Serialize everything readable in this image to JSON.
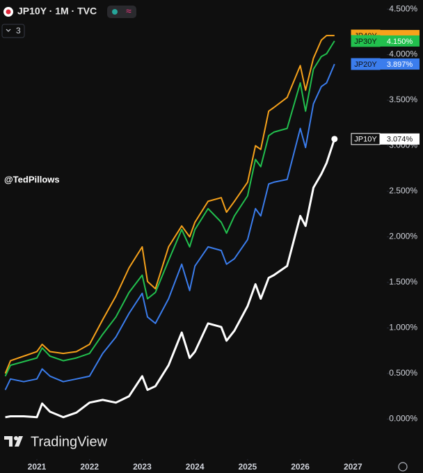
{
  "header": {
    "symbol": "JP10Y · 1M · TVC",
    "indicators": "3"
  },
  "watermark": "@TedPillows",
  "logo": "TradingView",
  "chart_data": {
    "type": "line",
    "x": [
      2020.4,
      2020.5,
      2020.75,
      2021.0,
      2021.1,
      2021.25,
      2021.5,
      2021.75,
      2022.0,
      2022.25,
      2022.5,
      2022.75,
      2023.0,
      2023.1,
      2023.25,
      2023.5,
      2023.75,
      2023.9,
      2024.0,
      2024.25,
      2024.5,
      2024.6,
      2024.75,
      2025.0,
      2025.15,
      2025.25,
      2025.4,
      2025.5,
      2025.75,
      2026.0,
      2026.1,
      2026.25,
      2026.4,
      2026.5,
      2026.65
    ],
    "series": [
      {
        "name": "JP40Y",
        "color": "#f7a21b",
        "values": [
          0.5,
          0.64,
          0.69,
          0.74,
          0.82,
          0.74,
          0.72,
          0.74,
          0.82,
          1.09,
          1.35,
          1.66,
          1.89,
          1.51,
          1.43,
          1.89,
          2.12,
          2.0,
          2.16,
          2.39,
          2.43,
          2.27,
          2.39,
          2.6,
          3.0,
          2.96,
          3.38,
          3.42,
          3.53,
          3.88,
          3.61,
          3.96,
          4.16,
          4.21,
          4.21
        ]
      },
      {
        "name": "JP30Y",
        "color": "#22c04e",
        "values": [
          0.47,
          0.59,
          0.63,
          0.67,
          0.78,
          0.69,
          0.64,
          0.67,
          0.72,
          0.93,
          1.12,
          1.39,
          1.58,
          1.32,
          1.39,
          1.74,
          2.08,
          1.89,
          2.08,
          2.31,
          2.16,
          2.04,
          2.23,
          2.45,
          2.85,
          2.77,
          3.11,
          3.15,
          3.19,
          3.69,
          3.38,
          3.84,
          3.98,
          4.01,
          4.15
        ],
        "value_labels": [
          null,
          null,
          null,
          null,
          null,
          null,
          null,
          null,
          null,
          null,
          null,
          null,
          null,
          null,
          null,
          null,
          null,
          null,
          null,
          null,
          null,
          null,
          null,
          null,
          null,
          null,
          null,
          null,
          null,
          null,
          null,
          null,
          null,
          null,
          "4.150%"
        ]
      },
      {
        "name": "JP20Y",
        "color": "#3b7ded",
        "values": [
          0.32,
          0.44,
          0.41,
          0.44,
          0.55,
          0.47,
          0.41,
          0.44,
          0.47,
          0.72,
          0.9,
          1.16,
          1.38,
          1.12,
          1.05,
          1.32,
          1.7,
          1.41,
          1.68,
          1.89,
          1.85,
          1.7,
          1.76,
          1.97,
          2.31,
          2.23,
          2.58,
          2.6,
          2.63,
          3.19,
          2.98,
          3.46,
          3.65,
          3.69,
          3.897
        ],
        "value_labels": [
          null,
          null,
          null,
          null,
          null,
          null,
          null,
          null,
          null,
          null,
          null,
          null,
          null,
          null,
          null,
          null,
          null,
          null,
          null,
          null,
          null,
          null,
          null,
          null,
          null,
          null,
          null,
          null,
          null,
          null,
          null,
          null,
          null,
          null,
          "3.897%"
        ]
      },
      {
        "name": "JP10Y",
        "color": "#ffffff",
        "values": [
          0.02,
          0.03,
          0.03,
          0.02,
          0.17,
          0.08,
          0.02,
          0.07,
          0.18,
          0.21,
          0.18,
          0.25,
          0.47,
          0.32,
          0.36,
          0.59,
          0.95,
          0.67,
          0.74,
          1.05,
          1.01,
          0.86,
          0.97,
          1.24,
          1.48,
          1.32,
          1.55,
          1.58,
          1.68,
          2.23,
          2.12,
          2.54,
          2.69,
          2.81,
          3.074
        ],
        "value_labels": [
          null,
          null,
          null,
          null,
          null,
          null,
          null,
          null,
          null,
          null,
          null,
          null,
          null,
          null,
          null,
          null,
          null,
          null,
          null,
          null,
          null,
          null,
          null,
          null,
          null,
          null,
          null,
          null,
          null,
          null,
          null,
          null,
          null,
          null,
          "3.074%"
        ]
      }
    ],
    "xlim": [
      2020.3,
      2027.63
    ],
    "xticks": [
      2021,
      2022,
      2023,
      2024,
      2025,
      2026,
      2027
    ],
    "ylim": [
      -0.44,
      4.6
    ],
    "yticks": [
      {
        "value": 0,
        "label": "0.000%"
      },
      {
        "value": 0.5,
        "label": "0.500%"
      },
      {
        "value": 1,
        "label": "1.000%"
      },
      {
        "value": 1.5,
        "label": "1.500%"
      },
      {
        "value": 2,
        "label": "2.000%"
      },
      {
        "value": 2.5,
        "label": "2.500%"
      },
      {
        "value": 3,
        "label": "3.000%"
      },
      {
        "value": 3.5,
        "label": "3.500%"
      },
      {
        "value": 4,
        "label": "4.000%"
      },
      {
        "value": 4.5,
        "label": "4.500%"
      }
    ]
  }
}
